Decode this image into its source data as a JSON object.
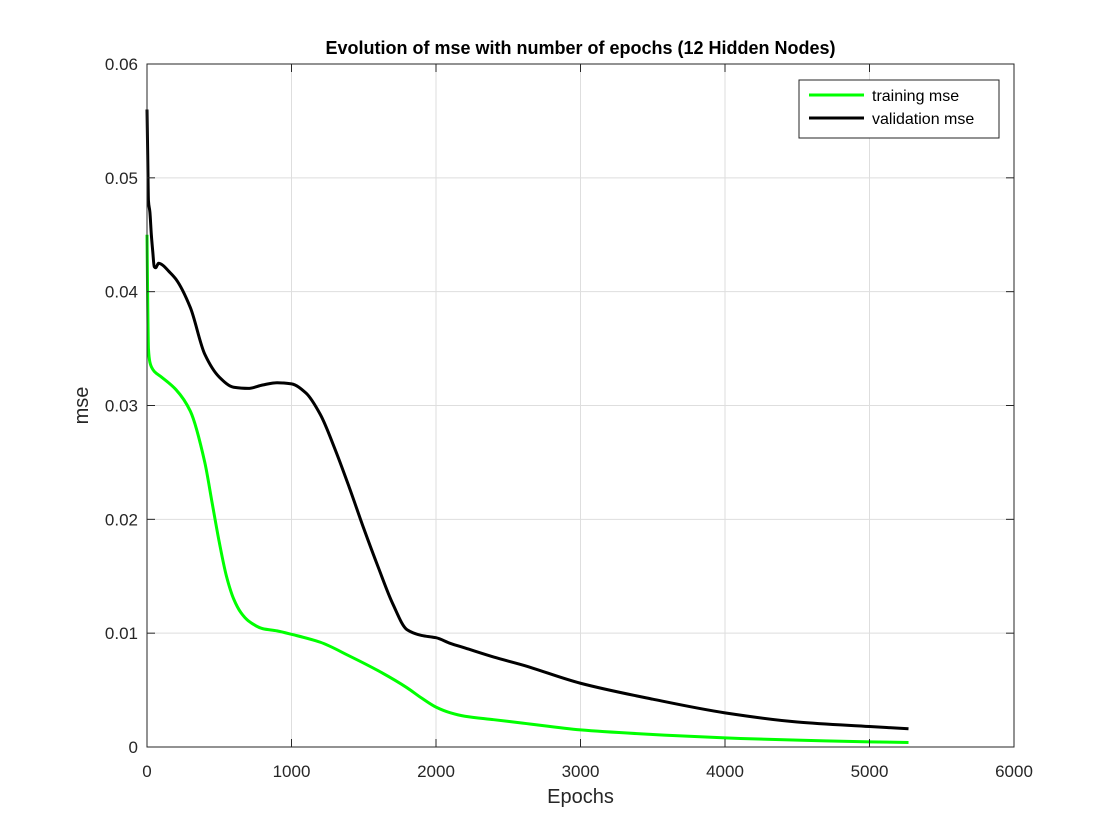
{
  "chart_data": {
    "type": "line",
    "title": "Evolution of mse with number of epochs (12 Hidden Nodes)",
    "xlabel": "Epochs",
    "ylabel": "mse",
    "xlim": [
      0,
      6000
    ],
    "ylim": [
      0,
      0.06
    ],
    "xticks": [
      0,
      1000,
      2000,
      3000,
      4000,
      5000,
      6000
    ],
    "xtick_labels": [
      "0",
      "1000",
      "2000",
      "3000",
      "4000",
      "5000",
      "6000"
    ],
    "yticks": [
      0,
      0.01,
      0.02,
      0.03,
      0.04,
      0.05,
      0.06
    ],
    "ytick_labels": [
      "0",
      "0.01",
      "0.02",
      "0.03",
      "0.04",
      "0.05",
      "0.06"
    ],
    "grid": true,
    "legend_position": "top-right",
    "series": [
      {
        "name": "training mse",
        "color": "#00ff00",
        "x": [
          0,
          5,
          10,
          20,
          30,
          50,
          100,
          200,
          300,
          400,
          450,
          500,
          550,
          600,
          650,
          700,
          800,
          900,
          1000,
          1200,
          1400,
          1600,
          1800,
          1900,
          2000,
          2100,
          2200,
          2400,
          2600,
          3000,
          3500,
          4000,
          4500,
          5000,
          5270
        ],
        "y": [
          0.045,
          0.039,
          0.035,
          0.0338,
          0.0334,
          0.033,
          0.0325,
          0.0314,
          0.0295,
          0.025,
          0.0215,
          0.018,
          0.015,
          0.013,
          0.0118,
          0.0111,
          0.0104,
          0.0102,
          0.0099,
          0.0092,
          0.008,
          0.0067,
          0.0052,
          0.0043,
          0.0035,
          0.003,
          0.0027,
          0.0024,
          0.0021,
          0.0015,
          0.0011,
          0.0008,
          0.0006,
          0.00045,
          0.0004
        ]
      },
      {
        "name": "validation mse",
        "color": "#000000",
        "x": [
          0,
          5,
          10,
          20,
          30,
          40,
          50,
          60,
          70,
          80,
          100,
          150,
          200,
          300,
          400,
          500,
          600,
          700,
          800,
          900,
          1000,
          1100,
          1200,
          1300,
          1400,
          1500,
          1600,
          1700,
          1800,
          1900,
          2000,
          2100,
          2200,
          2400,
          2600,
          3000,
          3500,
          4000,
          4500,
          5000,
          5270
        ],
        "y": [
          0.056,
          0.052,
          0.048,
          0.047,
          0.045,
          0.0435,
          0.0422,
          0.0421,
          0.0423,
          0.0425,
          0.0424,
          0.0418,
          0.0411,
          0.0386,
          0.0345,
          0.0325,
          0.0316,
          0.0315,
          0.0318,
          0.032,
          0.0319,
          0.0311,
          0.0292,
          0.0262,
          0.0228,
          0.0192,
          0.0158,
          0.0126,
          0.0103,
          0.0098,
          0.0096,
          0.0091,
          0.0087,
          0.0079,
          0.0072,
          0.0056,
          0.0042,
          0.003,
          0.0022,
          0.0018,
          0.0016
        ]
      }
    ]
  }
}
